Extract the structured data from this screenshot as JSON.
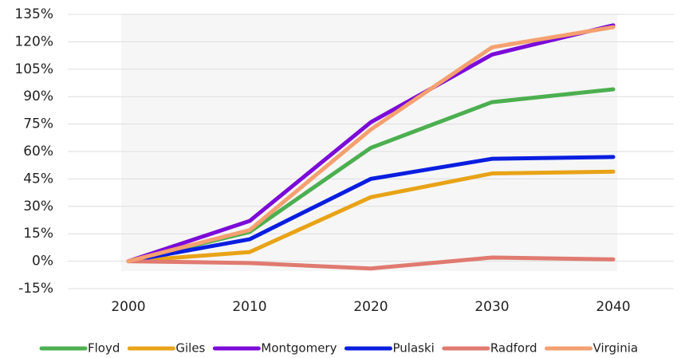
{
  "chart_data": {
    "type": "line",
    "categories": [
      "2000",
      "2010",
      "2020",
      "2030",
      "2040"
    ],
    "series": [
      {
        "name": "Floyd",
        "color": "#4caf50",
        "values": [
          0,
          16,
          62,
          87,
          94
        ]
      },
      {
        "name": "Giles",
        "color": "#e8a317",
        "values": [
          0,
          5,
          35,
          48,
          49
        ]
      },
      {
        "name": "Montgomery",
        "color": "#7b0bd8",
        "values": [
          0,
          22,
          76,
          113,
          129
        ]
      },
      {
        "name": "Pulaski",
        "color": "#0a1ee0",
        "values": [
          0,
          12,
          45,
          56,
          57
        ]
      },
      {
        "name": "Radford",
        "color": "#e07a70",
        "values": [
          0,
          -1,
          -4,
          2,
          1
        ]
      },
      {
        "name": "Virginia",
        "color": "#f5a070",
        "values": [
          0,
          17,
          72,
          117,
          128
        ]
      }
    ],
    "ylim": [
      -15,
      135
    ],
    "yticks": [
      {
        "value": -15,
        "label": "-15%"
      },
      {
        "value": 0,
        "label": "0%"
      },
      {
        "value": 15,
        "label": "15%"
      },
      {
        "value": 30,
        "label": "30%"
      },
      {
        "value": 45,
        "label": "45%"
      },
      {
        "value": 60,
        "label": "60%"
      },
      {
        "value": 75,
        "label": "75%"
      },
      {
        "value": 90,
        "label": "90%"
      },
      {
        "value": 105,
        "label": "105%"
      },
      {
        "value": 120,
        "label": "120%"
      },
      {
        "value": 135,
        "label": "135%"
      }
    ],
    "grid": true,
    "legend": "bottom"
  }
}
